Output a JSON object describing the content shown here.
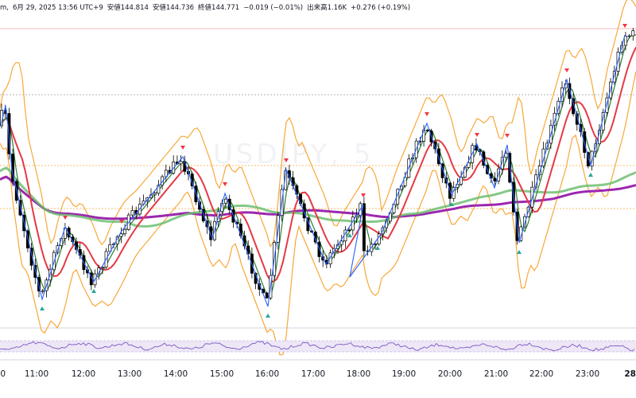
{
  "header": {
    "symbol_fragment": "m,",
    "date": "6月 29, 2025 13:56 UTC+9",
    "high": "安値144.814",
    "low": "安値144.736",
    "close": "終値144.771",
    "change": "−0.019 (−0.01%)",
    "volume": "出来高1.16K",
    "vol_change": "+0.276 (+0.19%)"
  },
  "watermark": "USDJPY, 5",
  "colors": {
    "candle_up": "#ffffff",
    "candle_down": "#000000",
    "candle_border": "#000000",
    "zigzag": "#2962ff",
    "ma_fast": "#2e7d32",
    "ma_red": "#e53945",
    "ma_green_thick": "#66bb6a",
    "ma_purple": "#9c27b0",
    "bollinger": "#f7a83a",
    "marker_high": "#f23645",
    "marker_low": "#26a69a",
    "rsi_line": "#7e57c2",
    "rsi_band": "#ede7f6"
  },
  "chart_data": {
    "type": "candlestick",
    "x_ticks": [
      "0",
      "11:00",
      "12:00",
      "13:00",
      "14:00",
      "15:00",
      "16:00",
      "17:00",
      "18:00",
      "19:00",
      "20:00",
      "21:00",
      "22:00",
      "23:00",
      "28"
    ],
    "x_tick_bold": "28",
    "series": [
      {
        "name": "zigzag",
        "points": [
          [
            1,
            158
          ],
          [
            7,
            133
          ],
          [
            10,
            157
          ],
          [
            15,
            214
          ],
          [
            53,
            376
          ],
          [
            82,
            285
          ],
          [
            118,
            354
          ],
          [
            153,
            290
          ],
          [
            230,
            197
          ],
          [
            267,
            300
          ],
          [
            283,
            243
          ],
          [
            337,
            385
          ],
          [
            360,
            213
          ],
          [
            410,
            332
          ],
          [
            457,
            257
          ],
          [
            440,
            348
          ],
          [
            480,
            293
          ],
          [
            537,
            155
          ],
          [
            568,
            245
          ],
          [
            600,
            181
          ],
          [
            622,
            236
          ],
          [
            638,
            182
          ],
          [
            653,
            305
          ],
          [
            713,
            100
          ],
          [
            743,
            208
          ],
          [
            786,
            44
          ]
        ]
      }
    ],
    "high_markers_x": [
      82,
      153,
      230,
      283,
      360,
      457,
      537,
      600,
      638,
      713,
      786
    ],
    "low_markers_x": [
      53,
      118,
      337,
      440,
      475,
      568,
      653,
      743
    ]
  }
}
